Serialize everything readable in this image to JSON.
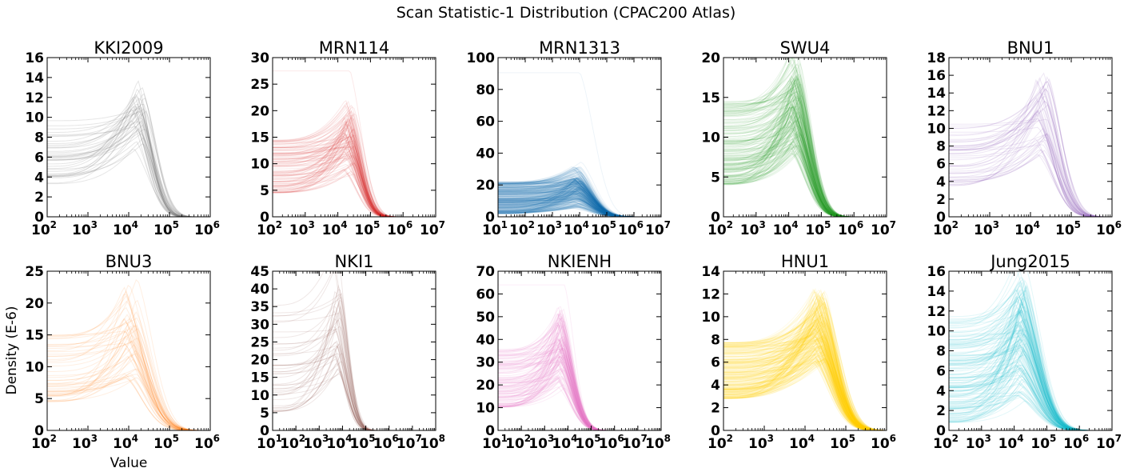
{
  "chart_data": {
    "type": "line",
    "title": "Scan Statistic-1 Distribution (CPAC200 Atlas)",
    "xlabel": "Value",
    "ylabel": "Density (E-6)",
    "xscale": "log",
    "grid": false,
    "panels": [
      {
        "name": "KKI2009",
        "color": "#777777",
        "xlim": [
          2,
          6
        ],
        "ylim": [
          0,
          16
        ],
        "yticks": [
          0,
          2,
          4,
          6,
          8,
          10,
          12,
          14,
          16
        ],
        "xticks": [
          2,
          3,
          4,
          5,
          6
        ],
        "n_curves": 40,
        "y_start_range": [
          3.0,
          9.8
        ],
        "peak_log_x": 4.25,
        "peak_range": [
          6.5,
          14.4
        ],
        "end_log_x": 5.5,
        "outlier_y": null,
        "line_alpha": 0.18
      },
      {
        "name": "MRN114",
        "color": "#d62728",
        "xlim": [
          2,
          7
        ],
        "ylim": [
          0,
          30
        ],
        "yticks": [
          0,
          5,
          10,
          15,
          20,
          25,
          30
        ],
        "xticks": [
          2,
          3,
          4,
          5,
          6,
          7
        ],
        "n_curves": 110,
        "y_start_range": [
          4.5,
          14.5
        ],
        "peak_log_x": 4.35,
        "peak_range": [
          8,
          20
        ],
        "end_log_x": 5.7,
        "outlier_y": 27.5,
        "line_alpha": 0.1
      },
      {
        "name": "MRN1313",
        "color": "#1f77b4",
        "xlim": [
          1,
          7
        ],
        "ylim": [
          0,
          100
        ],
        "yticks": [
          0,
          20,
          40,
          60,
          80,
          100
        ],
        "xticks": [
          1,
          2,
          3,
          4,
          5,
          6,
          7
        ],
        "n_curves": 400,
        "y_start_range": [
          2,
          22
        ],
        "peak_log_x": 3.9,
        "peak_range": [
          5,
          25
        ],
        "end_log_x": 6.0,
        "outlier_y": 90.5,
        "line_alpha": 0.08
      },
      {
        "name": "SWU4",
        "color": "#2ca02c",
        "xlim": [
          2,
          7
        ],
        "ylim": [
          0,
          20
        ],
        "yticks": [
          0,
          5,
          10,
          15,
          20
        ],
        "xticks": [
          2,
          3,
          4,
          5,
          6,
          7
        ],
        "n_curves": 200,
        "y_start_range": [
          4.0,
          14.5
        ],
        "peak_log_x": 4.2,
        "peak_range": [
          8,
          18.2
        ],
        "end_log_x": 5.8,
        "outlier_y": null,
        "line_alpha": 0.1
      },
      {
        "name": "BNU1",
        "color": "#9467bd",
        "xlim": [
          2,
          6
        ],
        "ylim": [
          0,
          18
        ],
        "yticks": [
          0,
          2,
          4,
          6,
          8,
          10,
          12,
          14,
          16,
          18
        ],
        "xticks": [
          2,
          3,
          4,
          5,
          6
        ],
        "n_curves": 50,
        "y_start_range": [
          3.5,
          10.5
        ],
        "peak_log_x": 4.3,
        "peak_range": [
          7,
          16.6
        ],
        "end_log_x": 5.7,
        "outlier_y": null,
        "line_alpha": 0.15
      },
      {
        "name": "BNU3",
        "color": "#ff7f0e",
        "xlim": [
          2,
          6
        ],
        "ylim": [
          0,
          25
        ],
        "yticks": [
          0,
          5,
          10,
          15,
          20,
          25
        ],
        "xticks": [
          2,
          3,
          4,
          5,
          6
        ],
        "n_curves": 50,
        "y_start_range": [
          4.5,
          15
        ],
        "peak_log_x": 4.05,
        "peak_range": [
          8,
          24
        ],
        "end_log_x": 5.65,
        "outlier_y": null,
        "line_alpha": 0.12
      },
      {
        "name": "NKI1",
        "color": "#8c564b",
        "xlim": [
          1,
          8
        ],
        "ylim": [
          0,
          45
        ],
        "yticks": [
          0,
          5,
          10,
          15,
          20,
          25,
          30,
          35,
          40,
          45
        ],
        "xticks": [
          1,
          2,
          3,
          4,
          5,
          6,
          7,
          8
        ],
        "n_curves": 45,
        "y_start_range": [
          5,
          36
        ],
        "peak_log_x": 3.8,
        "peak_range": [
          14,
          43
        ],
        "end_log_x": 5.4,
        "outlier_y": null,
        "line_alpha": 0.14
      },
      {
        "name": "NKIENH",
        "color": "#e377c2",
        "xlim": [
          1,
          8
        ],
        "ylim": [
          0,
          70
        ],
        "yticks": [
          0,
          10,
          20,
          30,
          40,
          50,
          60,
          70
        ],
        "xticks": [
          1,
          2,
          3,
          4,
          5,
          6,
          7,
          8
        ],
        "n_curves": 130,
        "y_start_range": [
          10,
          36
        ],
        "peak_log_x": 3.7,
        "peak_range": [
          18,
          55
        ],
        "end_log_x": 5.6,
        "outlier_y": 64,
        "line_alpha": 0.12
      },
      {
        "name": "HNU1",
        "color": "#ffd700",
        "xlim": [
          2,
          6
        ],
        "ylim": [
          0,
          14
        ],
        "yticks": [
          0,
          2,
          4,
          6,
          8,
          10,
          12,
          14
        ],
        "xticks": [
          2,
          3,
          4,
          5,
          6
        ],
        "n_curves": 300,
        "y_start_range": [
          2.8,
          7.8
        ],
        "peak_log_x": 4.35,
        "peak_range": [
          6,
          12.6
        ],
        "end_log_x": 5.85,
        "outlier_y": null,
        "line_alpha": 0.09
      },
      {
        "name": "Jung2015",
        "color": "#17becf",
        "xlim": [
          2,
          7
        ],
        "ylim": [
          0,
          16
        ],
        "yticks": [
          0,
          2,
          4,
          6,
          8,
          10,
          12,
          14,
          16
        ],
        "xticks": [
          2,
          3,
          4,
          5,
          6,
          7
        ],
        "n_curves": 160,
        "y_start_range": [
          0.8,
          11.5
        ],
        "peak_log_x": 4.2,
        "peak_range": [
          3,
          15.2
        ],
        "end_log_x": 6.2,
        "outlier_y": null,
        "line_alpha": 0.12
      }
    ]
  }
}
